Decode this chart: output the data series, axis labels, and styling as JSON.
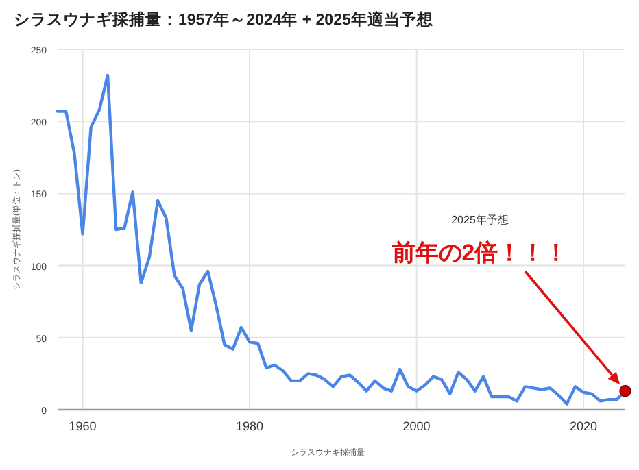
{
  "chart_data": {
    "type": "line",
    "title": "シラスウナギ採捕量：1957年～2024年 + 2025年適当予想",
    "xlabel": "シラスウナギ採捕量",
    "ylabel": "シラスウナギ採捕量(単位：トン)",
    "xlim": [
      1957,
      2025
    ],
    "ylim": [
      0,
      250
    ],
    "xticks": [
      1960,
      1980,
      2000,
      2020
    ],
    "yticks": [
      0,
      50,
      100,
      150,
      200,
      250
    ],
    "grid": true,
    "series": [
      {
        "color": "#4a86e8",
        "x": [
          1957,
          1958,
          1959,
          1960,
          1961,
          1962,
          1963,
          1964,
          1965,
          1966,
          1967,
          1968,
          1969,
          1970,
          1971,
          1972,
          1973,
          1974,
          1975,
          1976,
          1977,
          1978,
          1979,
          1980,
          1981,
          1982,
          1983,
          1984,
          1985,
          1986,
          1987,
          1988,
          1989,
          1990,
          1991,
          1992,
          1993,
          1994,
          1995,
          1996,
          1997,
          1998,
          1999,
          2000,
          2001,
          2002,
          2003,
          2004,
          2005,
          2006,
          2007,
          2008,
          2009,
          2010,
          2011,
          2012,
          2013,
          2014,
          2015,
          2016,
          2017,
          2018,
          2019,
          2020,
          2021,
          2022,
          2023,
          2024,
          2025
        ],
        "values": [
          207,
          207,
          178,
          122,
          196,
          208,
          232,
          125,
          126,
          151,
          88,
          106,
          145,
          133,
          93,
          84,
          55,
          87,
          96,
          72,
          45,
          42,
          57,
          47,
          46,
          29,
          31,
          27,
          20,
          20,
          25,
          24,
          21,
          16,
          23,
          24,
          19,
          13,
          20,
          15,
          13,
          28,
          16,
          13,
          17,
          23,
          21,
          11,
          26,
          21,
          13,
          23,
          9,
          9,
          9,
          6,
          16,
          15,
          14,
          15,
          10,
          4,
          16,
          12,
          11,
          6,
          7,
          7,
          13
        ]
      },
      {
        "type": "scatter",
        "color": "#cc0000",
        "marker": "circle",
        "x": [
          2025
        ],
        "values": [
          13
        ]
      }
    ],
    "annotations": [
      "2025年予想",
      "前年の2倍！！！"
    ]
  }
}
